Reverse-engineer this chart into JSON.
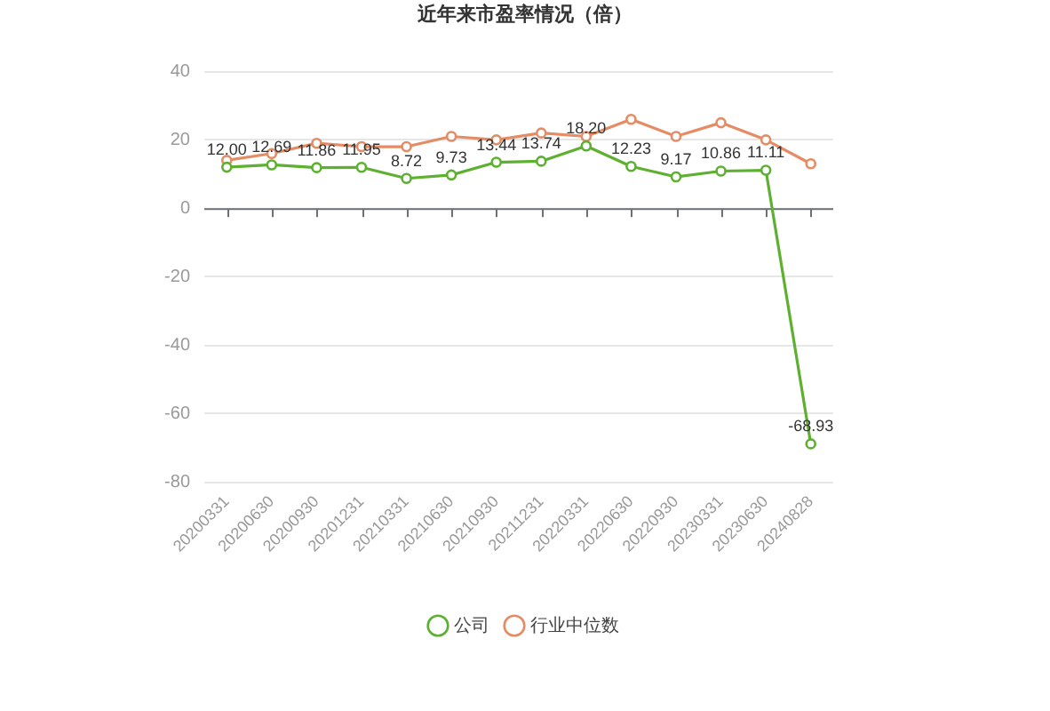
{
  "chart_data": {
    "type": "line",
    "title": "近年来市盈率情况（倍）",
    "categories": [
      "20200331",
      "20200630",
      "20200930",
      "20201231",
      "20210331",
      "20210630",
      "20210930",
      "20211231",
      "20220331",
      "20220630",
      "20220930",
      "20230331",
      "20230630",
      "20240828"
    ],
    "series": [
      {
        "name": "公司",
        "color": "#5db030",
        "values": [
          12.0,
          12.69,
          11.86,
          11.95,
          8.72,
          9.73,
          13.44,
          13.74,
          18.2,
          12.23,
          9.17,
          10.86,
          11.11,
          -68.93
        ],
        "value_labels": [
          "12.00",
          "12.69",
          "11.86",
          "11.95",
          "8.72",
          "9.73",
          "13.44",
          "13.74",
          "18.20",
          "12.23",
          "9.17",
          "10.86",
          "11.11",
          "-68.93"
        ]
      },
      {
        "name": "行业中位数",
        "color": "#e58c65",
        "values": [
          14,
          16,
          19,
          18,
          18,
          21,
          20,
          22,
          21,
          26,
          21,
          25,
          20,
          13
        ]
      }
    ],
    "ylim": [
      -80,
      40
    ],
    "yticks": [
      -80,
      -60,
      -40,
      -20,
      0,
      20,
      40
    ],
    "grid": "y",
    "legend": "bottom",
    "marker": "circle",
    "line_style": "solid"
  }
}
